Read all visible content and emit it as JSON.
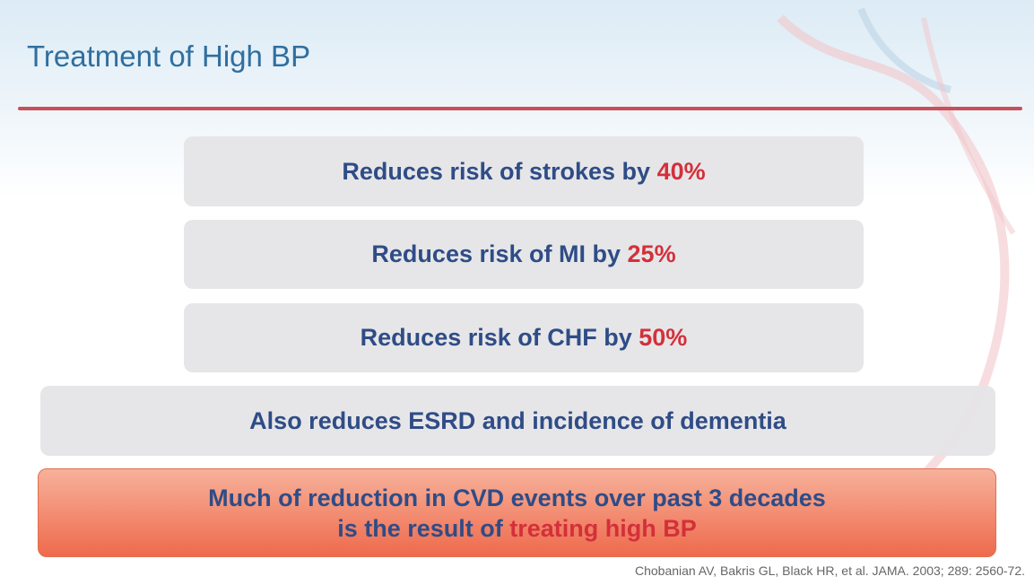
{
  "title": "Treatment of High BP",
  "items": [
    {
      "text": "Reduces risk of strokes by",
      "highlight": "40%"
    },
    {
      "text": "Reduces risk of MI by",
      "highlight": "25%"
    },
    {
      "text": "Reduces risk of CHF by",
      "highlight": "50%"
    }
  ],
  "note": "Also reduces ESRD and incidence of dementia",
  "conclusion": {
    "line1": "Much of reduction in CVD events over past 3 decades",
    "line2": "is the result of",
    "highlight": "treating high BP"
  },
  "citation": "Chobanian AV, Bakris GL, Black HR, et al. JAMA. 2003; 289: 2560-72."
}
